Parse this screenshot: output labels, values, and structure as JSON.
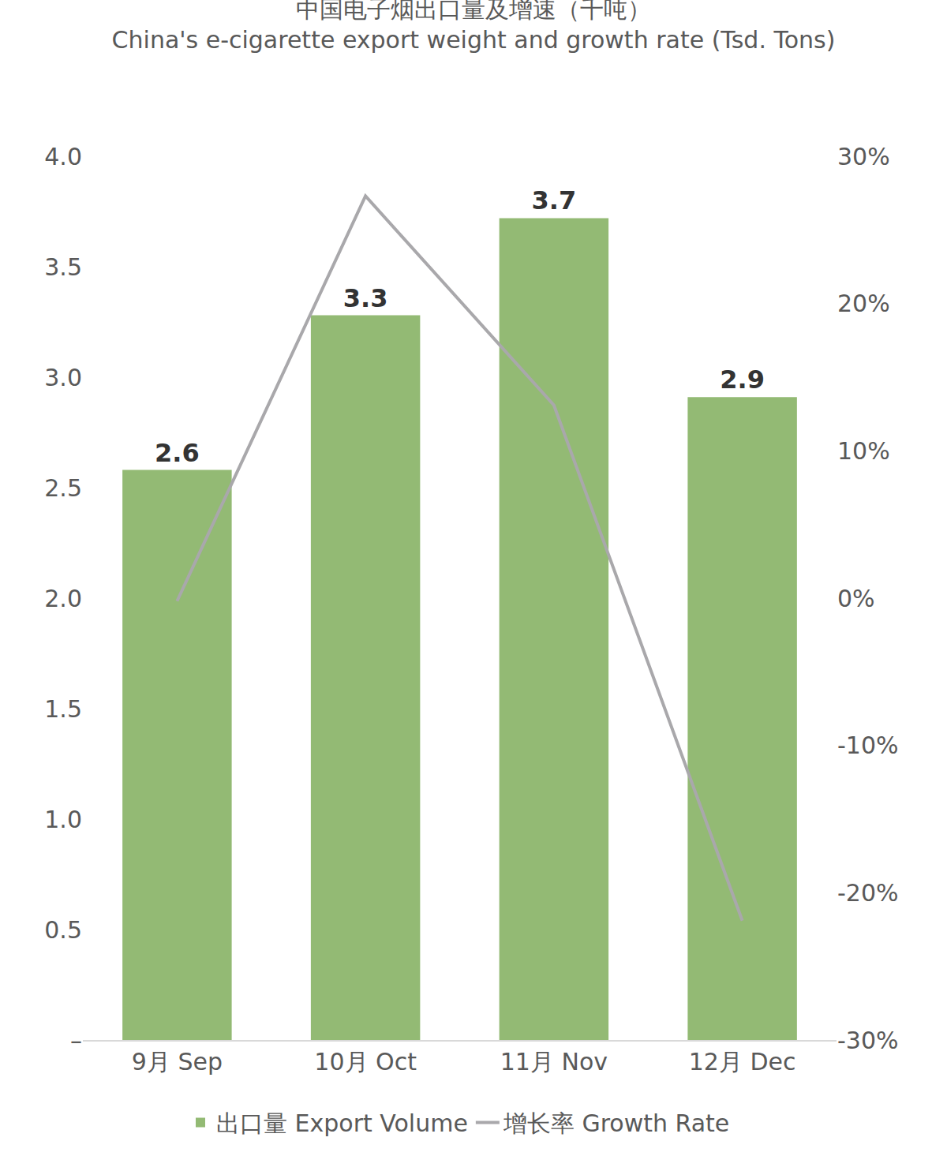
{
  "chart_data": {
    "type": "bar",
    "title": "中国电子烟出口量及增速（千吨）",
    "subtitle": "China's e-cigarette export weight and growth rate (Tsd. Tons)",
    "categories": [
      "9月 Sep",
      "10月 Oct",
      "11月 Nov",
      "12月 Dec"
    ],
    "series": [
      {
        "name": "出口量 Export Volume",
        "type": "bar",
        "color": "#93ba74",
        "values": [
          2.58,
          3.28,
          3.72,
          2.91
        ],
        "value_labels": [
          "2.6",
          "3.3",
          "3.7",
          "2.9"
        ]
      },
      {
        "name": "增长率 Growth Rate",
        "type": "line",
        "color": "#a9a8ab",
        "axis": "y2",
        "values": [
          -0.2,
          27.3,
          13.1,
          -21.9
        ]
      }
    ],
    "ylim": [
      0,
      4
    ],
    "yticks": [
      {
        "value": 0,
        "label": "–"
      },
      {
        "value": 0.5,
        "label": "0.5"
      },
      {
        "value": 1,
        "label": "1.0"
      },
      {
        "value": 1.5,
        "label": "1.5"
      },
      {
        "value": 2,
        "label": "2.0"
      },
      {
        "value": 2.5,
        "label": "2.5"
      },
      {
        "value": 3,
        "label": "3.0"
      },
      {
        "value": 3.5,
        "label": "3.5"
      },
      {
        "value": 4,
        "label": "4.0"
      }
    ],
    "y2lim": [
      -30,
      30
    ],
    "y2ticks": [
      {
        "value": -30,
        "label": "-30%"
      },
      {
        "value": -20,
        "label": "-20%"
      },
      {
        "value": -10,
        "label": "-10%"
      },
      {
        "value": 0,
        "label": "0%"
      },
      {
        "value": 10,
        "label": "10%"
      },
      {
        "value": 20,
        "label": "20%"
      },
      {
        "value": 30,
        "label": "30%"
      }
    ],
    "grid": false,
    "legend": "bottom",
    "data_labels": true
  }
}
